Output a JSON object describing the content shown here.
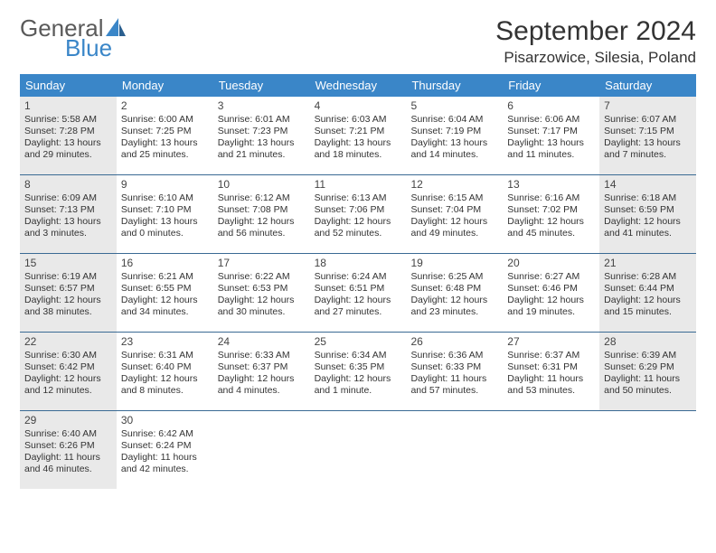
{
  "logo": {
    "line1": "General",
    "line2": "Blue"
  },
  "title": "September 2024",
  "location": "Pisarzowice, Silesia, Poland",
  "colors": {
    "header_bg": "#3a86c8",
    "header_text": "#ffffff",
    "shaded_bg": "#e9e9e9",
    "row_border": "#3a6a94",
    "body_text": "#333333",
    "logo_gray": "#5a5a5a",
    "logo_blue": "#3a86c8"
  },
  "dow": [
    "Sunday",
    "Monday",
    "Tuesday",
    "Wednesday",
    "Thursday",
    "Friday",
    "Saturday"
  ],
  "weeks": [
    [
      {
        "num": "1",
        "shaded": true,
        "sunrise": "Sunrise: 5:58 AM",
        "sunset": "Sunset: 7:28 PM",
        "daylight": "Daylight: 13 hours and 29 minutes."
      },
      {
        "num": "2",
        "shaded": false,
        "sunrise": "Sunrise: 6:00 AM",
        "sunset": "Sunset: 7:25 PM",
        "daylight": "Daylight: 13 hours and 25 minutes."
      },
      {
        "num": "3",
        "shaded": false,
        "sunrise": "Sunrise: 6:01 AM",
        "sunset": "Sunset: 7:23 PM",
        "daylight": "Daylight: 13 hours and 21 minutes."
      },
      {
        "num": "4",
        "shaded": false,
        "sunrise": "Sunrise: 6:03 AM",
        "sunset": "Sunset: 7:21 PM",
        "daylight": "Daylight: 13 hours and 18 minutes."
      },
      {
        "num": "5",
        "shaded": false,
        "sunrise": "Sunrise: 6:04 AM",
        "sunset": "Sunset: 7:19 PM",
        "daylight": "Daylight: 13 hours and 14 minutes."
      },
      {
        "num": "6",
        "shaded": false,
        "sunrise": "Sunrise: 6:06 AM",
        "sunset": "Sunset: 7:17 PM",
        "daylight": "Daylight: 13 hours and 11 minutes."
      },
      {
        "num": "7",
        "shaded": true,
        "sunrise": "Sunrise: 6:07 AM",
        "sunset": "Sunset: 7:15 PM",
        "daylight": "Daylight: 13 hours and 7 minutes."
      }
    ],
    [
      {
        "num": "8",
        "shaded": true,
        "sunrise": "Sunrise: 6:09 AM",
        "sunset": "Sunset: 7:13 PM",
        "daylight": "Daylight: 13 hours and 3 minutes."
      },
      {
        "num": "9",
        "shaded": false,
        "sunrise": "Sunrise: 6:10 AM",
        "sunset": "Sunset: 7:10 PM",
        "daylight": "Daylight: 13 hours and 0 minutes."
      },
      {
        "num": "10",
        "shaded": false,
        "sunrise": "Sunrise: 6:12 AM",
        "sunset": "Sunset: 7:08 PM",
        "daylight": "Daylight: 12 hours and 56 minutes."
      },
      {
        "num": "11",
        "shaded": false,
        "sunrise": "Sunrise: 6:13 AM",
        "sunset": "Sunset: 7:06 PM",
        "daylight": "Daylight: 12 hours and 52 minutes."
      },
      {
        "num": "12",
        "shaded": false,
        "sunrise": "Sunrise: 6:15 AM",
        "sunset": "Sunset: 7:04 PM",
        "daylight": "Daylight: 12 hours and 49 minutes."
      },
      {
        "num": "13",
        "shaded": false,
        "sunrise": "Sunrise: 6:16 AM",
        "sunset": "Sunset: 7:02 PM",
        "daylight": "Daylight: 12 hours and 45 minutes."
      },
      {
        "num": "14",
        "shaded": true,
        "sunrise": "Sunrise: 6:18 AM",
        "sunset": "Sunset: 6:59 PM",
        "daylight": "Daylight: 12 hours and 41 minutes."
      }
    ],
    [
      {
        "num": "15",
        "shaded": true,
        "sunrise": "Sunrise: 6:19 AM",
        "sunset": "Sunset: 6:57 PM",
        "daylight": "Daylight: 12 hours and 38 minutes."
      },
      {
        "num": "16",
        "shaded": false,
        "sunrise": "Sunrise: 6:21 AM",
        "sunset": "Sunset: 6:55 PM",
        "daylight": "Daylight: 12 hours and 34 minutes."
      },
      {
        "num": "17",
        "shaded": false,
        "sunrise": "Sunrise: 6:22 AM",
        "sunset": "Sunset: 6:53 PM",
        "daylight": "Daylight: 12 hours and 30 minutes."
      },
      {
        "num": "18",
        "shaded": false,
        "sunrise": "Sunrise: 6:24 AM",
        "sunset": "Sunset: 6:51 PM",
        "daylight": "Daylight: 12 hours and 27 minutes."
      },
      {
        "num": "19",
        "shaded": false,
        "sunrise": "Sunrise: 6:25 AM",
        "sunset": "Sunset: 6:48 PM",
        "daylight": "Daylight: 12 hours and 23 minutes."
      },
      {
        "num": "20",
        "shaded": false,
        "sunrise": "Sunrise: 6:27 AM",
        "sunset": "Sunset: 6:46 PM",
        "daylight": "Daylight: 12 hours and 19 minutes."
      },
      {
        "num": "21",
        "shaded": true,
        "sunrise": "Sunrise: 6:28 AM",
        "sunset": "Sunset: 6:44 PM",
        "daylight": "Daylight: 12 hours and 15 minutes."
      }
    ],
    [
      {
        "num": "22",
        "shaded": true,
        "sunrise": "Sunrise: 6:30 AM",
        "sunset": "Sunset: 6:42 PM",
        "daylight": "Daylight: 12 hours and 12 minutes."
      },
      {
        "num": "23",
        "shaded": false,
        "sunrise": "Sunrise: 6:31 AM",
        "sunset": "Sunset: 6:40 PM",
        "daylight": "Daylight: 12 hours and 8 minutes."
      },
      {
        "num": "24",
        "shaded": false,
        "sunrise": "Sunrise: 6:33 AM",
        "sunset": "Sunset: 6:37 PM",
        "daylight": "Daylight: 12 hours and 4 minutes."
      },
      {
        "num": "25",
        "shaded": false,
        "sunrise": "Sunrise: 6:34 AM",
        "sunset": "Sunset: 6:35 PM",
        "daylight": "Daylight: 12 hours and 1 minute."
      },
      {
        "num": "26",
        "shaded": false,
        "sunrise": "Sunrise: 6:36 AM",
        "sunset": "Sunset: 6:33 PM",
        "daylight": "Daylight: 11 hours and 57 minutes."
      },
      {
        "num": "27",
        "shaded": false,
        "sunrise": "Sunrise: 6:37 AM",
        "sunset": "Sunset: 6:31 PM",
        "daylight": "Daylight: 11 hours and 53 minutes."
      },
      {
        "num": "28",
        "shaded": true,
        "sunrise": "Sunrise: 6:39 AM",
        "sunset": "Sunset: 6:29 PM",
        "daylight": "Daylight: 11 hours and 50 minutes."
      }
    ],
    [
      {
        "num": "29",
        "shaded": true,
        "sunrise": "Sunrise: 6:40 AM",
        "sunset": "Sunset: 6:26 PM",
        "daylight": "Daylight: 11 hours and 46 minutes."
      },
      {
        "num": "30",
        "shaded": false,
        "sunrise": "Sunrise: 6:42 AM",
        "sunset": "Sunset: 6:24 PM",
        "daylight": "Daylight: 11 hours and 42 minutes."
      },
      {
        "empty": true
      },
      {
        "empty": true
      },
      {
        "empty": true
      },
      {
        "empty": true
      },
      {
        "empty": true
      }
    ]
  ]
}
